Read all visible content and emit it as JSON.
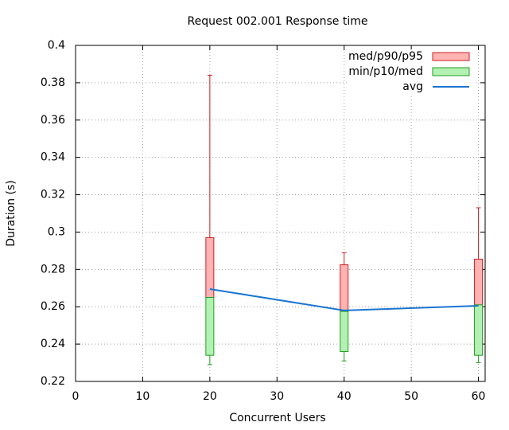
{
  "chart_data": {
    "type": "boxplot",
    "title": "Request 002.001 Response time",
    "x_label": "Concurrent Users",
    "y_label": "Duration (s)",
    "x": [
      20,
      40,
      60
    ],
    "xlim": [
      0,
      61
    ],
    "xticks": [
      0,
      10,
      20,
      30,
      40,
      50,
      60
    ],
    "ylim": [
      0.22,
      0.4
    ],
    "yticks": [
      0.22,
      0.24,
      0.26,
      0.28,
      0.3,
      0.32,
      0.34,
      0.36,
      0.38,
      0.4
    ],
    "grid": true,
    "legend": "top-right",
    "series": [
      {
        "name": "med/p90/p95",
        "color": "#ffb3b3",
        "edge_color": "#d02020",
        "box_low": [
          0.265,
          0.2575,
          0.261
        ],
        "box_high": [
          0.297,
          0.2825,
          0.2855
        ],
        "whisker": [
          0.384,
          0.289,
          0.313
        ]
      },
      {
        "name": "min/p10/med",
        "color": "#b3f0b3",
        "edge_color": "#20a020",
        "box_low": [
          0.234,
          0.236,
          0.234
        ],
        "box_high": [
          0.265,
          0.2575,
          0.261
        ],
        "whisker": [
          0.229,
          0.231,
          0.23
        ]
      },
      {
        "name": "avg",
        "color": "#1a75d1",
        "values": [
          0.2695,
          0.258,
          0.2605
        ]
      }
    ]
  }
}
